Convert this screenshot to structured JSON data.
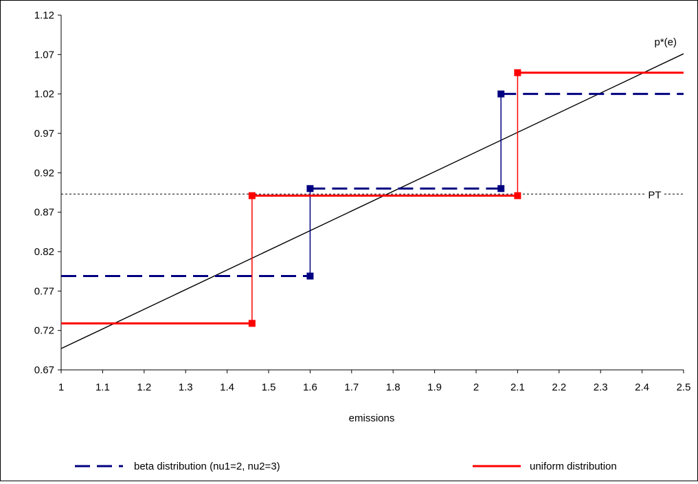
{
  "chart_data": {
    "type": "line",
    "xlabel": "emissions",
    "ylabel": "",
    "title": "",
    "xlim": [
      1,
      2.5
    ],
    "ylim": [
      0.67,
      1.12
    ],
    "x_ticks": [
      "1",
      "1.1",
      "1.2",
      "1.3",
      "1.4",
      "1.5",
      "1.6",
      "1.7",
      "1.8",
      "1.9",
      "2",
      "2.1",
      "2.2",
      "2.3",
      "2.4",
      "2.5"
    ],
    "y_ticks": [
      "0.67",
      "0.72",
      "0.77",
      "0.82",
      "0.87",
      "0.92",
      "0.97",
      "1.02",
      "1.07",
      "1.12"
    ],
    "grid": false,
    "legend_position": "bottom",
    "series": [
      {
        "name": "beta distribution (nu1=2, nu2=3)",
        "style": "dashed-step",
        "color": "#000080",
        "points": [
          [
            1.0,
            0.789
          ],
          [
            1.6,
            0.789
          ],
          [
            1.6,
            0.9
          ],
          [
            2.06,
            0.9
          ],
          [
            2.06,
            1.02
          ],
          [
            2.5,
            1.02
          ]
        ],
        "markers": [
          [
            1.6,
            0.789
          ],
          [
            1.6,
            0.9
          ],
          [
            2.06,
            0.9
          ],
          [
            2.06,
            1.02
          ]
        ]
      },
      {
        "name": "uniform distribution",
        "style": "solid-step",
        "color": "#ff0000",
        "points": [
          [
            1.0,
            0.729
          ],
          [
            1.46,
            0.729
          ],
          [
            1.46,
            0.891
          ],
          [
            2.1,
            0.891
          ],
          [
            2.1,
            1.047
          ],
          [
            2.5,
            1.047
          ]
        ],
        "markers": [
          [
            1.46,
            0.729
          ],
          [
            1.46,
            0.891
          ],
          [
            2.1,
            0.891
          ],
          [
            2.1,
            1.047
          ]
        ]
      }
    ],
    "reference_lines": [
      {
        "label": "p*(e)",
        "kind": "line",
        "color": "#000000",
        "points": [
          [
            1.0,
            0.697
          ],
          [
            2.5,
            1.071
          ]
        ]
      },
      {
        "label": "PT",
        "kind": "horizontal-dotted",
        "color": "#000000",
        "y": 0.893,
        "x_range": [
          1.0,
          2.5
        ]
      }
    ]
  }
}
